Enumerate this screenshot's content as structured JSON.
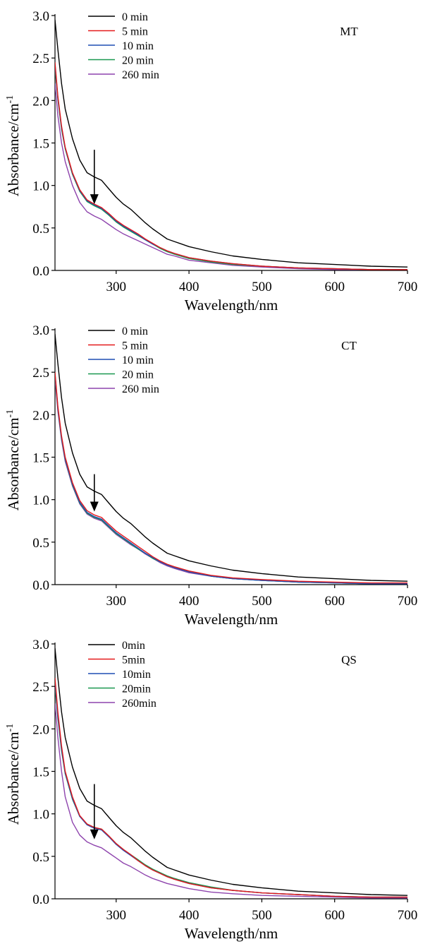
{
  "chart_data": [
    {
      "type": "line",
      "title": "MT",
      "xlabel": "Wavelength/nm",
      "ylabel_main": "Absorbance/cm",
      "ylabel_sup": "-1",
      "xlim": [
        216,
        700
      ],
      "ylim": [
        0,
        3.0
      ],
      "xticks": [
        300,
        400,
        500,
        600,
        700
      ],
      "yticks": [
        "0.0",
        "0.5",
        "1.0",
        "1.5",
        "2.0",
        "2.5",
        "3.0"
      ],
      "grid": false,
      "legend_position": "top-left",
      "annotation": {
        "type": "arrow",
        "x": 270,
        "y_from": 1.42,
        "y_to": 0.78
      },
      "series": [
        {
          "name": "0 min",
          "color": "#000000",
          "x": [
            216,
            220,
            225,
            230,
            240,
            250,
            260,
            270,
            280,
            290,
            300,
            310,
            320,
            330,
            340,
            350,
            360,
            370,
            380,
            400,
            430,
            460,
            500,
            550,
            600,
            650,
            700
          ],
          "y": [
            2.95,
            2.6,
            2.2,
            1.9,
            1.55,
            1.3,
            1.15,
            1.1,
            1.06,
            0.96,
            0.86,
            0.78,
            0.72,
            0.64,
            0.56,
            0.49,
            0.43,
            0.37,
            0.34,
            0.28,
            0.22,
            0.17,
            0.13,
            0.09,
            0.07,
            0.05,
            0.04
          ]
        },
        {
          "name": "5 min",
          "color": "#e41a1c",
          "x": [
            216,
            220,
            225,
            230,
            240,
            250,
            260,
            270,
            280,
            290,
            300,
            310,
            320,
            330,
            340,
            350,
            360,
            370,
            380,
            400,
            430,
            460,
            500,
            550,
            600,
            650,
            700
          ],
          "y": [
            2.45,
            2.05,
            1.7,
            1.45,
            1.15,
            0.95,
            0.83,
            0.78,
            0.74,
            0.67,
            0.59,
            0.53,
            0.48,
            0.43,
            0.37,
            0.32,
            0.27,
            0.23,
            0.2,
            0.15,
            0.11,
            0.08,
            0.05,
            0.03,
            0.02,
            0.01,
            0.01
          ]
        },
        {
          "name": "10 min",
          "color": "#1f4eb4",
          "x": [
            216,
            220,
            225,
            230,
            240,
            250,
            260,
            270,
            280,
            290,
            300,
            310,
            320,
            330,
            340,
            350,
            360,
            370,
            380,
            400,
            430,
            460,
            500,
            550,
            600,
            650,
            700
          ],
          "y": [
            2.42,
            2.03,
            1.68,
            1.44,
            1.14,
            0.94,
            0.82,
            0.77,
            0.73,
            0.66,
            0.58,
            0.52,
            0.47,
            0.42,
            0.36,
            0.31,
            0.27,
            0.23,
            0.2,
            0.15,
            0.11,
            0.08,
            0.05,
            0.03,
            0.02,
            0.01,
            0.01
          ]
        },
        {
          "name": "20 min",
          "color": "#1a9850",
          "x": [
            216,
            220,
            225,
            230,
            240,
            250,
            260,
            270,
            280,
            290,
            300,
            310,
            320,
            330,
            340,
            350,
            360,
            370,
            380,
            400,
            430,
            460,
            500,
            550,
            600,
            650,
            700
          ],
          "y": [
            2.38,
            2.01,
            1.66,
            1.43,
            1.13,
            0.93,
            0.81,
            0.76,
            0.72,
            0.65,
            0.57,
            0.51,
            0.46,
            0.41,
            0.36,
            0.31,
            0.26,
            0.22,
            0.19,
            0.14,
            0.1,
            0.07,
            0.05,
            0.03,
            0.02,
            0.01,
            0.01
          ]
        },
        {
          "name": "260 min",
          "color": "#8e44ad",
          "x": [
            216,
            220,
            225,
            230,
            240,
            250,
            260,
            270,
            280,
            290,
            300,
            310,
            320,
            330,
            340,
            350,
            360,
            370,
            380,
            400,
            430,
            460,
            500,
            550,
            600,
            650,
            700
          ],
          "y": [
            2.2,
            1.82,
            1.5,
            1.28,
            1.0,
            0.8,
            0.69,
            0.64,
            0.6,
            0.54,
            0.48,
            0.43,
            0.39,
            0.35,
            0.31,
            0.27,
            0.23,
            0.19,
            0.17,
            0.12,
            0.09,
            0.06,
            0.04,
            0.02,
            0.01,
            0.01,
            0.01
          ]
        }
      ]
    },
    {
      "type": "line",
      "title": "CT",
      "xlabel": "Wavelength/nm",
      "ylabel_main": "Absorbance/cm",
      "ylabel_sup": "-1",
      "xlim": [
        216,
        700
      ],
      "ylim": [
        0,
        3.0
      ],
      "xticks": [
        300,
        400,
        500,
        600,
        700
      ],
      "yticks": [
        "0.0",
        "0.5",
        "1.0",
        "1.5",
        "2.0",
        "2.5",
        "3.0"
      ],
      "grid": false,
      "legend_position": "top-left",
      "annotation": {
        "type": "arrow",
        "x": 270,
        "y_from": 1.3,
        "y_to": 0.86
      },
      "series": [
        {
          "name": "0 min",
          "color": "#000000",
          "x": [
            216,
            220,
            225,
            230,
            240,
            250,
            260,
            270,
            280,
            290,
            300,
            310,
            320,
            330,
            340,
            350,
            360,
            370,
            380,
            400,
            430,
            460,
            500,
            550,
            600,
            650,
            700
          ],
          "y": [
            2.95,
            2.6,
            2.2,
            1.9,
            1.55,
            1.3,
            1.15,
            1.1,
            1.06,
            0.96,
            0.86,
            0.78,
            0.72,
            0.64,
            0.56,
            0.49,
            0.43,
            0.37,
            0.34,
            0.28,
            0.22,
            0.17,
            0.13,
            0.09,
            0.07,
            0.05,
            0.04
          ]
        },
        {
          "name": "5 min",
          "color": "#e41a1c",
          "x": [
            216,
            220,
            225,
            230,
            240,
            250,
            260,
            270,
            280,
            290,
            300,
            310,
            320,
            330,
            340,
            350,
            360,
            370,
            380,
            400,
            430,
            460,
            500,
            550,
            600,
            650,
            700
          ],
          "y": [
            2.5,
            2.1,
            1.75,
            1.5,
            1.2,
            0.99,
            0.87,
            0.82,
            0.79,
            0.71,
            0.63,
            0.57,
            0.51,
            0.45,
            0.39,
            0.33,
            0.28,
            0.24,
            0.21,
            0.16,
            0.11,
            0.08,
            0.06,
            0.04,
            0.03,
            0.02,
            0.02
          ]
        },
        {
          "name": "10 min",
          "color": "#1f4eb4",
          "x": [
            216,
            220,
            225,
            230,
            240,
            250,
            260,
            270,
            280,
            290,
            300,
            310,
            320,
            330,
            340,
            350,
            360,
            370,
            380,
            400,
            430,
            460,
            500,
            550,
            600,
            650,
            700
          ],
          "y": [
            2.48,
            2.08,
            1.73,
            1.48,
            1.18,
            0.97,
            0.85,
            0.8,
            0.77,
            0.69,
            0.61,
            0.55,
            0.49,
            0.43,
            0.37,
            0.32,
            0.27,
            0.23,
            0.2,
            0.15,
            0.1,
            0.07,
            0.05,
            0.03,
            0.02,
            0.01,
            0.01
          ]
        },
        {
          "name": "20 min",
          "color": "#1a9850",
          "x": [
            216,
            220,
            225,
            230,
            240,
            250,
            260,
            270,
            280,
            290,
            300,
            310,
            320,
            330,
            340,
            350,
            360,
            370,
            380,
            400,
            430,
            460,
            500,
            550,
            600,
            650,
            700
          ],
          "y": [
            2.46,
            2.07,
            1.72,
            1.47,
            1.17,
            0.96,
            0.84,
            0.79,
            0.76,
            0.68,
            0.6,
            0.54,
            0.48,
            0.42,
            0.37,
            0.31,
            0.27,
            0.23,
            0.2,
            0.15,
            0.1,
            0.07,
            0.05,
            0.03,
            0.02,
            0.01,
            0.01
          ]
        },
        {
          "name": "260 min",
          "color": "#8e44ad",
          "x": [
            216,
            220,
            225,
            230,
            240,
            250,
            260,
            270,
            280,
            290,
            300,
            310,
            320,
            330,
            340,
            350,
            360,
            370,
            380,
            400,
            430,
            460,
            500,
            550,
            600,
            650,
            700
          ],
          "y": [
            2.42,
            2.04,
            1.7,
            1.45,
            1.16,
            0.95,
            0.83,
            0.78,
            0.75,
            0.67,
            0.59,
            0.53,
            0.47,
            0.42,
            0.36,
            0.31,
            0.26,
            0.22,
            0.19,
            0.14,
            0.1,
            0.07,
            0.05,
            0.03,
            0.02,
            0.01,
            0.01
          ]
        }
      ]
    },
    {
      "type": "line",
      "title": "QS",
      "xlabel": "Wavelength/nm",
      "ylabel_main": "Absorbance/cm",
      "ylabel_sup": "-1",
      "xlim": [
        216,
        700
      ],
      "ylim": [
        0,
        3.0
      ],
      "xticks": [
        300,
        400,
        500,
        600,
        700
      ],
      "yticks": [
        "0.0",
        "0.5",
        "1.0",
        "1.5",
        "2.0",
        "2.5",
        "3.0"
      ],
      "grid": false,
      "legend_position": "top-left",
      "annotation": {
        "type": "arrow",
        "x": 270,
        "y_from": 1.35,
        "y_to": 0.7
      },
      "series": [
        {
          "name": "0min",
          "color": "#000000",
          "x": [
            216,
            220,
            225,
            230,
            240,
            250,
            260,
            270,
            280,
            290,
            300,
            310,
            320,
            330,
            340,
            350,
            360,
            370,
            380,
            400,
            430,
            460,
            500,
            550,
            600,
            650,
            700
          ],
          "y": [
            2.95,
            2.6,
            2.2,
            1.9,
            1.55,
            1.3,
            1.15,
            1.1,
            1.06,
            0.96,
            0.86,
            0.78,
            0.72,
            0.64,
            0.56,
            0.49,
            0.43,
            0.37,
            0.34,
            0.28,
            0.22,
            0.17,
            0.13,
            0.09,
            0.07,
            0.05,
            0.04
          ]
        },
        {
          "name": "5min",
          "color": "#e41a1c",
          "x": [
            216,
            220,
            225,
            230,
            240,
            250,
            260,
            270,
            280,
            290,
            300,
            310,
            320,
            330,
            340,
            350,
            360,
            370,
            380,
            400,
            430,
            460,
            500,
            550,
            600,
            650,
            700
          ],
          "y": [
            2.6,
            2.2,
            1.8,
            1.5,
            1.2,
            0.98,
            0.88,
            0.84,
            0.82,
            0.74,
            0.65,
            0.58,
            0.52,
            0.45,
            0.39,
            0.34,
            0.3,
            0.26,
            0.23,
            0.18,
            0.13,
            0.1,
            0.07,
            0.05,
            0.03,
            0.02,
            0.02
          ]
        },
        {
          "name": "10min",
          "color": "#1f4eb4",
          "x": [
            216,
            220,
            225,
            230,
            240,
            250,
            260,
            270,
            280,
            290,
            300,
            310,
            320,
            330,
            340,
            350,
            360,
            370,
            380,
            400,
            430,
            460,
            500,
            550,
            600,
            650,
            700
          ],
          "y": [
            2.55,
            2.15,
            1.76,
            1.48,
            1.18,
            0.97,
            0.87,
            0.83,
            0.81,
            0.73,
            0.64,
            0.57,
            0.51,
            0.45,
            0.39,
            0.34,
            0.3,
            0.26,
            0.23,
            0.18,
            0.13,
            0.1,
            0.07,
            0.05,
            0.03,
            0.02,
            0.02
          ]
        },
        {
          "name": "20min",
          "color": "#1a9850",
          "x": [
            216,
            220,
            225,
            230,
            240,
            250,
            260,
            270,
            280,
            290,
            300,
            310,
            320,
            330,
            340,
            350,
            360,
            370,
            380,
            400,
            430,
            460,
            500,
            550,
            600,
            650,
            700
          ],
          "y": [
            2.5,
            2.12,
            1.74,
            1.47,
            1.17,
            0.97,
            0.88,
            0.84,
            0.82,
            0.74,
            0.65,
            0.58,
            0.52,
            0.46,
            0.4,
            0.35,
            0.31,
            0.27,
            0.24,
            0.19,
            0.14,
            0.1,
            0.07,
            0.05,
            0.03,
            0.02,
            0.02
          ]
        },
        {
          "name": "260min",
          "color": "#8e44ad",
          "x": [
            216,
            220,
            225,
            230,
            240,
            250,
            260,
            270,
            280,
            290,
            300,
            310,
            320,
            330,
            340,
            350,
            360,
            370,
            380,
            400,
            430,
            460,
            500,
            550,
            600,
            650,
            700
          ],
          "y": [
            2.3,
            1.9,
            1.5,
            1.2,
            0.9,
            0.75,
            0.67,
            0.63,
            0.6,
            0.54,
            0.48,
            0.42,
            0.38,
            0.33,
            0.28,
            0.24,
            0.21,
            0.18,
            0.16,
            0.12,
            0.08,
            0.06,
            0.04,
            0.03,
            0.02,
            0.01,
            0.01
          ]
        }
      ]
    }
  ]
}
